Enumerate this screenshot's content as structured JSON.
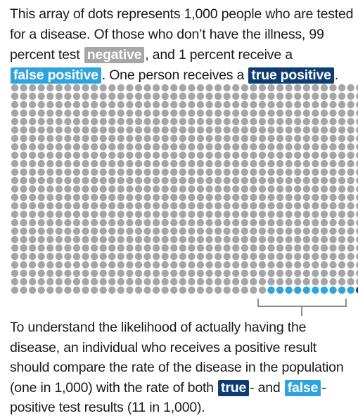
{
  "intro": {
    "text_1": "This array of dots represents 1,000 people who are tested for a disease. Of those who don’t have the illness, 99 percent test ",
    "tag_negative": "negative",
    "text_2": ", and 1 percent receive a ",
    "tag_false_positive": "false positive",
    "text_3": ". One person receives a ",
    "tag_true_positive": "true positive",
    "text_4": "."
  },
  "outro": {
    "text_1": "To understand the likelihood of actually having the disease, an individual who receives a positive result should compare the rate of the disease in the population (one in 1,000) with the rate of both ",
    "tag_true": "true",
    "text_2": "- and ",
    "tag_false": "false",
    "text_3": "-positive test results (11 in 1,000)."
  },
  "colors": {
    "negative": "#a6a6a6",
    "false_positive": "#2fa3dc",
    "true_positive": "#0d3d73",
    "bracket": "#8c8c8c"
  },
  "dot_array": {
    "total": 1000,
    "columns": 40,
    "rows": 25,
    "negative_count": 989,
    "false_positive_count": 10,
    "true_positive_count": 1
  }
}
